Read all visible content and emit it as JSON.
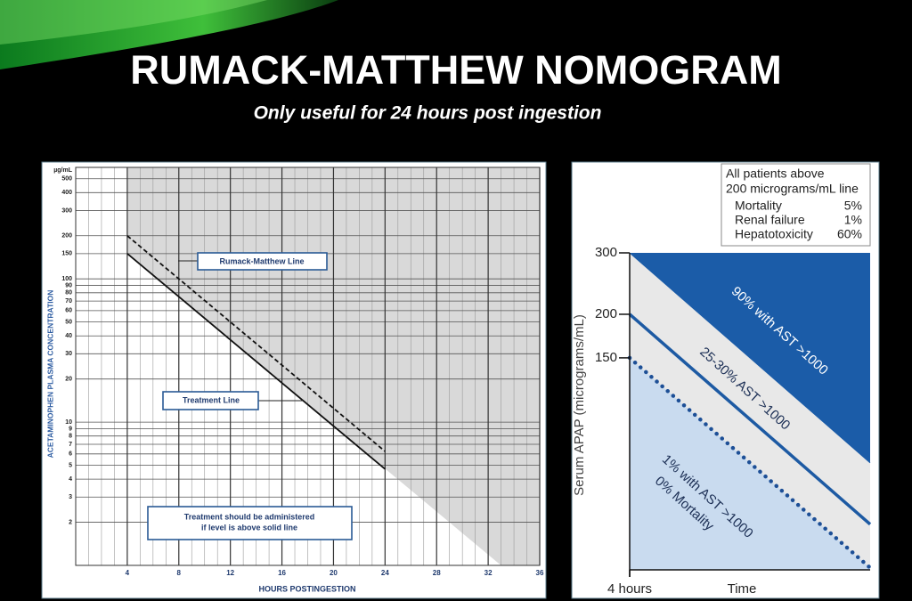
{
  "title": "RUMACK-MATTHEW NOMOGRAM",
  "subtitle": "Only useful for 24 hours post ingestion",
  "chart_data": [
    {
      "type": "line",
      "y_unit": "µg/mL",
      "xlabel": "HOURS POSTINGESTION",
      "ylabel": "ACETAMINOPHEN PLASMA CONCENTRATION",
      "log_y": true,
      "grid": true,
      "xlim": [
        0,
        36
      ],
      "xticks": [
        4,
        8,
        12,
        16,
        20,
        24,
        28,
        32,
        36
      ],
      "x_minor_ticks": [
        1,
        2,
        3,
        5,
        6,
        7,
        9,
        10,
        11,
        13,
        14,
        15,
        17,
        18,
        19,
        21,
        22,
        23,
        25,
        26,
        27,
        29,
        30,
        31,
        33,
        34,
        35
      ],
      "ylim": [
        1,
        600
      ],
      "yticks": [
        2,
        3,
        4,
        5,
        6,
        7,
        8,
        9,
        10,
        20,
        30,
        40,
        50,
        60,
        70,
        80,
        90,
        100,
        150,
        200,
        300,
        400,
        500
      ],
      "shaded_area": {
        "x": [
          4,
          33
        ],
        "values": [
          150,
          1
        ],
        "color": "#d9d9d9"
      },
      "series": [
        {
          "name": "Rumack-Matthew Line",
          "color": "#111111",
          "dash": true,
          "x": [
            4,
            24
          ],
          "values": [
            200,
            6.25
          ]
        },
        {
          "name": "Treatment Line",
          "color": "#111111",
          "dash": false,
          "x": [
            4,
            24
          ],
          "values": [
            150,
            4.7
          ]
        }
      ],
      "note": [
        "Treatment should be administered",
        "if level is above solid line"
      ]
    },
    {
      "type": "line",
      "xlabel": "Time",
      "ylabel": "Serum APAP (micrograms/mL)",
      "log_y": true,
      "grid": false,
      "xlim": [
        4,
        12
      ],
      "xticks": [
        {
          "value": 4,
          "label": "4 hours"
        }
      ],
      "ylim": [
        37,
        300
      ],
      "yticks": [
        150,
        200,
        300
      ],
      "region_colors": [
        "#1b5ca8",
        "#e8e8e8",
        "#e8e8e8",
        "#c9dbef"
      ],
      "series": [
        {
          "color": "#1b5ca8",
          "style": "solid",
          "x": [
            4,
            12
          ],
          "values": [
            300,
            75
          ]
        },
        {
          "color": "#1d5aa3",
          "style": "solid",
          "x": [
            4,
            12
          ],
          "values": [
            200,
            50
          ]
        },
        {
          "color": "#1d4f96",
          "style": "dotted",
          "x": [
            4,
            12
          ],
          "values": [
            150,
            37.5
          ]
        }
      ],
      "annotations": [
        "90% with AST >1000",
        "25-30% AST >1000",
        "1% with AST >1000",
        "0% Mortality"
      ],
      "info_box": {
        "title": [
          "All patients above",
          "200 micrograms/mL line"
        ],
        "rows": [
          [
            "Mortality",
            "5%"
          ],
          [
            "Renal failure",
            "1%"
          ],
          [
            "Hepatotoxicity",
            "60%"
          ]
        ]
      }
    }
  ]
}
